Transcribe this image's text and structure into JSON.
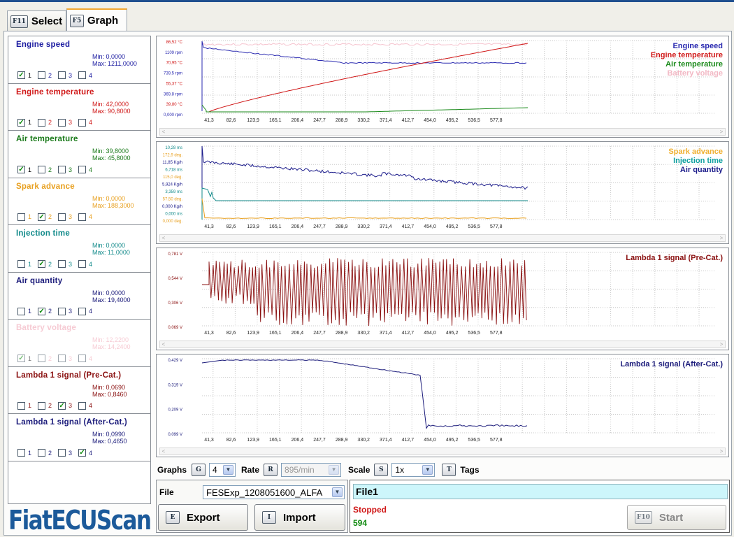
{
  "tabs": [
    {
      "key": "F11",
      "label": "Select"
    },
    {
      "key": "F5",
      "label": "Graph"
    }
  ],
  "signals": [
    {
      "name": "Engine speed",
      "min": "Min: 0,0000",
      "max": "Max: 1211,0000",
      "color": "#1a1aa0",
      "checks": [
        true,
        false,
        false,
        false
      ],
      "faded": false
    },
    {
      "name": "Engine temperature",
      "min": "Min: 42,0000",
      "max": "Max: 90,8000",
      "color": "#d01818",
      "checks": [
        true,
        false,
        false,
        false
      ],
      "faded": false
    },
    {
      "name": "Air temperature",
      "min": "Min: 39,8000",
      "max": "Max: 45,8000",
      "color": "#1a7a1a",
      "checks": [
        true,
        false,
        false,
        false
      ],
      "faded": false
    },
    {
      "name": "Spark advance",
      "min": "Min: 0,0000",
      "max": "Max: 188,3000",
      "color": "#e8a020",
      "checks": [
        false,
        true,
        false,
        false
      ],
      "faded": false
    },
    {
      "name": "Injection time",
      "min": "Min: 0,0000",
      "max": "Max: 11,0000",
      "color": "#118a8a",
      "checks": [
        false,
        true,
        false,
        false
      ],
      "faded": false
    },
    {
      "name": "Air quantity",
      "min": "Min: 0,0000",
      "max": "Max: 19,4000",
      "color": "#1a1a7a",
      "checks": [
        false,
        true,
        false,
        false
      ],
      "faded": false
    },
    {
      "name": "Battery voltage",
      "min": "Min: 12,2200",
      "max": "Max: 14,2400",
      "color": "#f0a0b0",
      "checks": [
        true,
        false,
        false,
        false
      ],
      "faded": true
    },
    {
      "name": "Lambda 1 signal (Pre-Cat.)",
      "min": "Min: 0,0690",
      "max": "Max: 0,8460",
      "color": "#8a1010",
      "checks": [
        false,
        false,
        true,
        false
      ],
      "faded": false
    },
    {
      "name": "Lambda 1 signal (After-Cat.)",
      "min": "Min: 0,0990",
      "max": "Max: 0,4650",
      "color": "#1a1a7a",
      "checks": [
        false,
        false,
        false,
        true
      ],
      "faded": false
    }
  ],
  "check_labels": [
    "1",
    "2",
    "3",
    "4"
  ],
  "logo": "FiatECUScan",
  "xticks": [
    "41,3",
    "82,6",
    "123,9",
    "165,1",
    "206,4",
    "247,7",
    "288,9",
    "330,2",
    "371,4",
    "412,7",
    "454,0",
    "495,2",
    "536,5",
    "577,8"
  ],
  "graphs": [
    {
      "legend": [
        {
          "t": "Engine speed",
          "c": "#2a2ab0"
        },
        {
          "t": "Engine temperature",
          "c": "#d01818"
        },
        {
          "t": "Air temperature",
          "c": "#1a8a1a"
        },
        {
          "t": "Battery voltage",
          "c": "#f2b8c4"
        }
      ],
      "ylabels": [
        {
          "t": "86,52 °C",
          "c": "#d01818"
        },
        {
          "t": "1109 rpm",
          "c": "#2a2ab0"
        },
        {
          "t": "70,95 °C",
          "c": "#d01818"
        },
        {
          "t": "739,5 rpm",
          "c": "#2a2ab0"
        },
        {
          "t": "55,37 °C",
          "c": "#d01818"
        },
        {
          "t": "369,8 rpm",
          "c": "#2a2ab0"
        },
        {
          "t": "39,80 °C",
          "c": "#d01818"
        },
        {
          "t": "0,000 rpm",
          "c": "#2a2ab0"
        }
      ]
    },
    {
      "legend": [
        {
          "t": "Spark advance",
          "c": "#f0b030"
        },
        {
          "t": "Injection time",
          "c": "#11a0a0"
        },
        {
          "t": "Air quantity",
          "c": "#1a1a8a"
        }
      ],
      "ylabels": [
        {
          "t": "10,28 ms",
          "c": "#118a8a"
        },
        {
          "t": "172,9 deg.",
          "c": "#e8a020"
        },
        {
          "t": "11,85 Kg/h",
          "c": "#1a1a8a"
        },
        {
          "t": "6,718 ms",
          "c": "#118a8a"
        },
        {
          "t": "115,0 deg.",
          "c": "#e8a020"
        },
        {
          "t": "5,924 Kg/h",
          "c": "#1a1a8a"
        },
        {
          "t": "3,359 ms",
          "c": "#118a8a"
        },
        {
          "t": "57,50 deg.",
          "c": "#e8a020"
        },
        {
          "t": "0,000 Kg/h",
          "c": "#1a1a8a"
        },
        {
          "t": "0,000 ms",
          "c": "#118a8a"
        },
        {
          "t": "0,000 deg.",
          "c": "#e8a020"
        }
      ]
    },
    {
      "legend": [
        {
          "t": "Lambda 1 signal (Pre-Cat.)",
          "c": "#8a1010"
        }
      ],
      "ylabels": [
        {
          "t": "0,781 V",
          "c": "#8a1010"
        },
        {
          "t": "0,544 V",
          "c": "#8a1010"
        },
        {
          "t": "0,306 V",
          "c": "#8a1010"
        },
        {
          "t": "0,069 V",
          "c": "#8a1010"
        }
      ]
    },
    {
      "legend": [
        {
          "t": "Lambda 1 signal (After-Cat.)",
          "c": "#1a1a7a"
        }
      ],
      "ylabels": [
        {
          "t": "0,429 V",
          "c": "#1a1a7a"
        },
        {
          "t": "0,319 V",
          "c": "#1a1a7a"
        },
        {
          "t": "0,209 V",
          "c": "#1a1a7a"
        },
        {
          "t": "0,099 V",
          "c": "#1a1a7a"
        }
      ]
    }
  ],
  "controls": {
    "graphs_label": "Graphs",
    "graphs_key": "G",
    "graphs_value": "4",
    "rate_label": "Rate",
    "rate_key": "R",
    "rate_value": "895/min",
    "scale_label": "Scale",
    "scale_key": "S",
    "scale_value": "1x",
    "tags_key": "T",
    "tags_label": "Tags"
  },
  "file": {
    "label": "File",
    "value": "FESExp_1208051600_ALFA",
    "export_key": "E",
    "export_label": "Export",
    "import_key": "I",
    "import_label": "Import"
  },
  "status": {
    "name": "File1",
    "state": "Stopped",
    "count": "594",
    "start_key": "F10",
    "start_label": "Start"
  }
}
